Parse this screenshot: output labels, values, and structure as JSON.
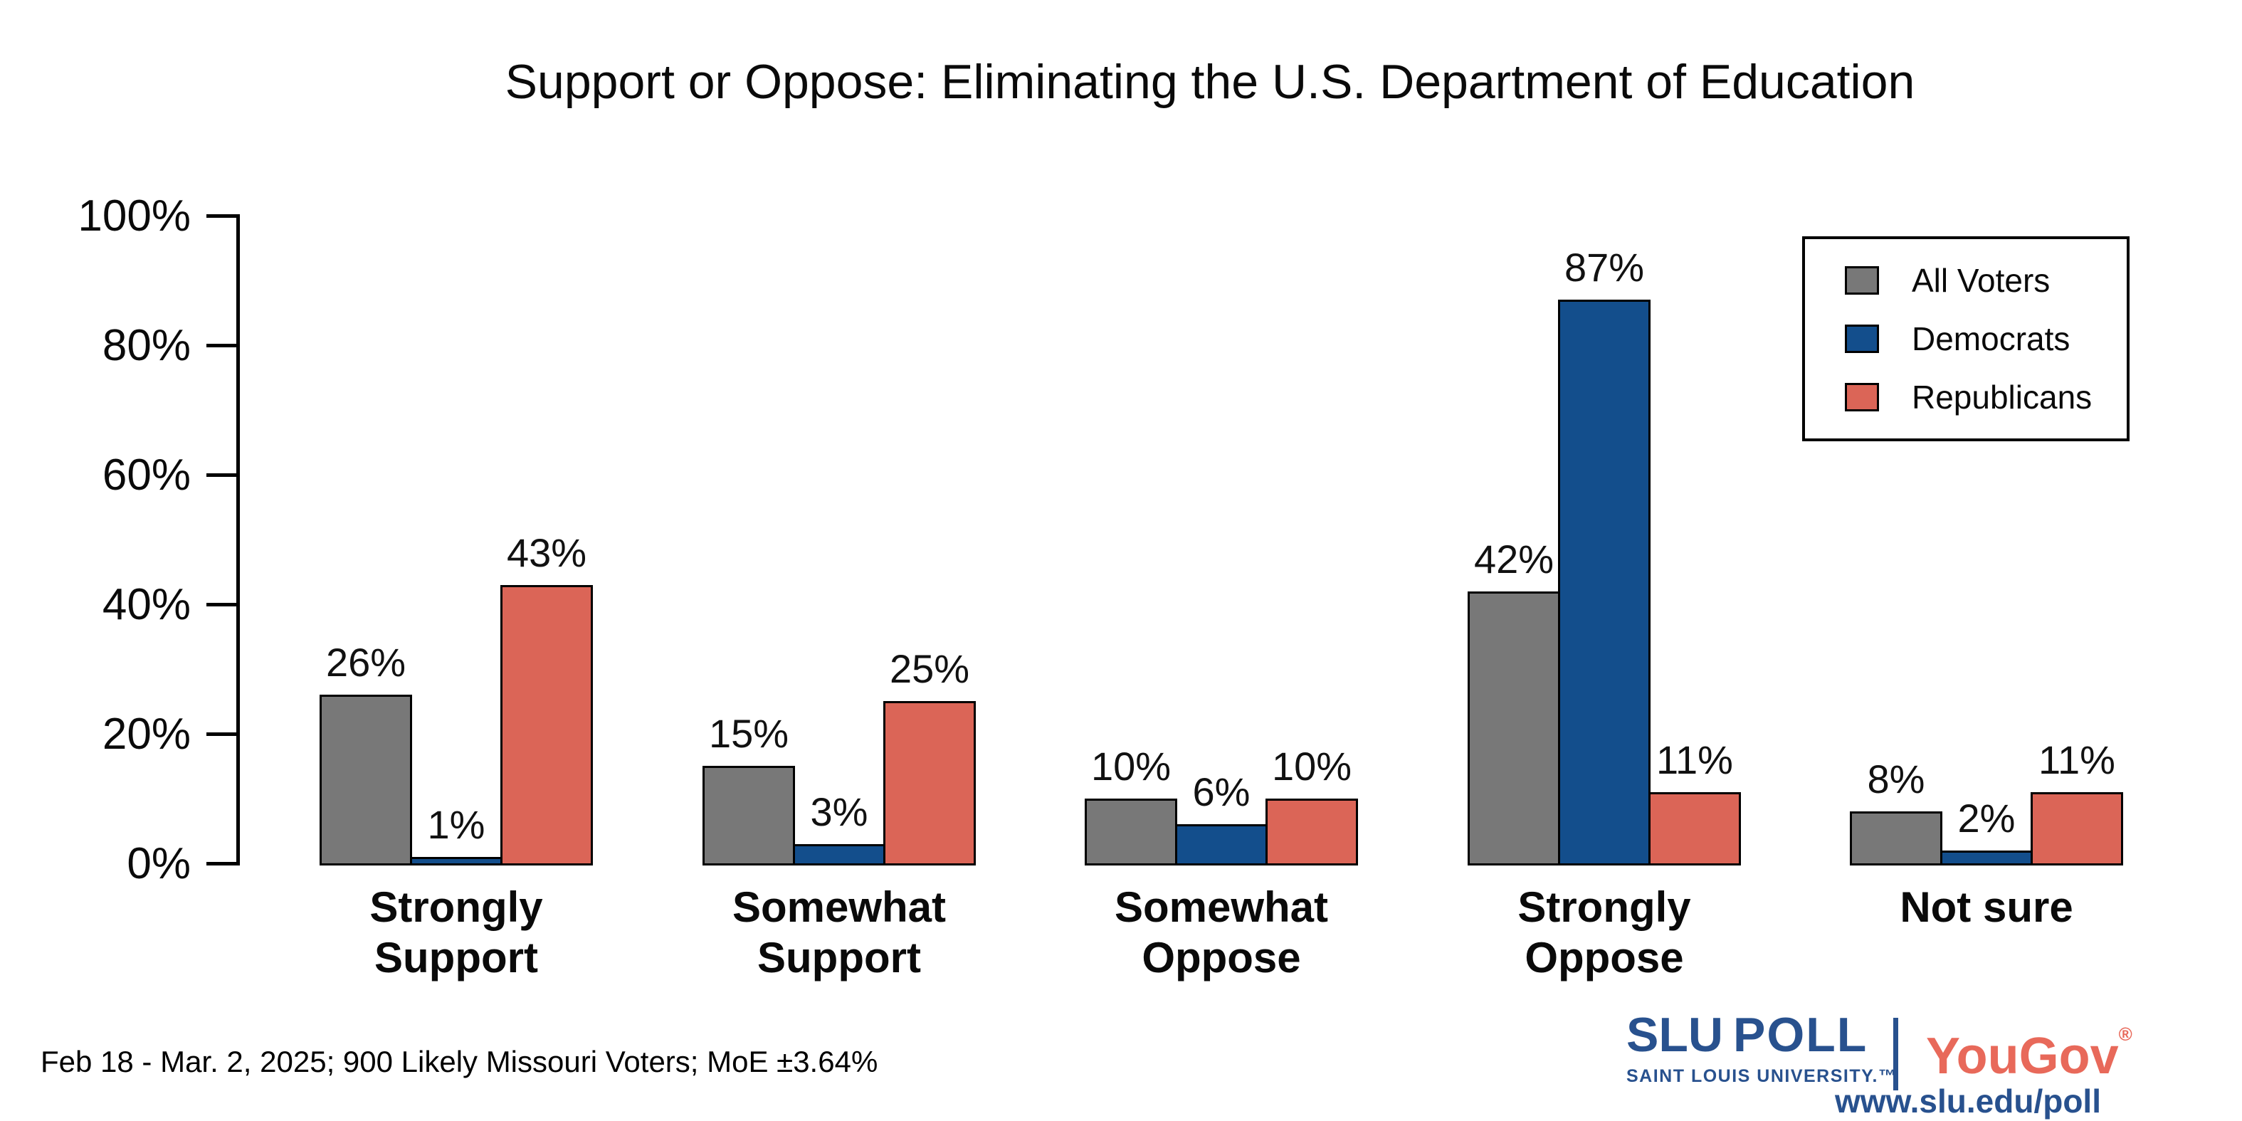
{
  "title": "Support or Oppose: Eliminating the U.S. Department of Education",
  "footnote": "Feb 18 - Mar. 2, 2025; 900 Likely Missouri Voters; MoE ±3.64%",
  "chart_data": {
    "type": "bar",
    "title": "Support or Oppose: Eliminating the U.S. Department of Education",
    "categories": [
      "Strongly\nSupport",
      "Somewhat\nSupport",
      "Somewhat\nOppose",
      "Strongly\nOppose",
      "Not sure"
    ],
    "series": [
      {
        "name": "All Voters",
        "color": "#787878",
        "values": [
          26,
          15,
          10,
          42,
          8
        ]
      },
      {
        "name": "Democrats",
        "color": "#134e8c",
        "values": [
          1,
          3,
          6,
          87,
          2
        ]
      },
      {
        "name": "Republicans",
        "color": "#db6557",
        "values": [
          43,
          25,
          10,
          11,
          11
        ]
      }
    ],
    "value_suffix": "%",
    "xlabel": "",
    "ylabel": "",
    "ylim": [
      0,
      100
    ],
    "yticks": [
      "0%",
      "20%",
      "40%",
      "60%",
      "80%",
      "100%"
    ],
    "grid": false,
    "legend_position": "upper right",
    "bar_outline_color": "#000000"
  },
  "branding": {
    "slu_text_primary": "SLU",
    "slu_text_secondary": "POLL",
    "slu_subtext": "SAINT LOUIS UNIVERSITY.™",
    "yougov_text": "YouGov",
    "registered_mark": "®",
    "url": "www.slu.edu/poll",
    "slu_blue": "#28518e",
    "yougov_coral": "#e8695a"
  }
}
